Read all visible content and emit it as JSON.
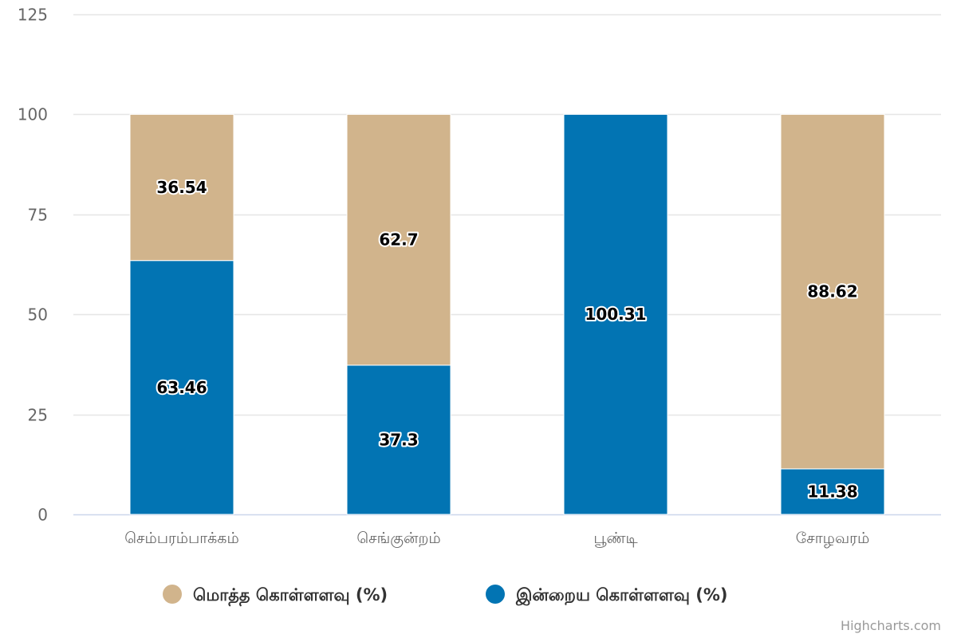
{
  "chart_data": {
    "type": "bar",
    "stacking": "percent",
    "categories": [
      "செம்பரம்பாக்கம்",
      "செங்குன்றம்",
      "பூண்டி",
      "சோழவரம்"
    ],
    "series": [
      {
        "name": "மொத்த கொள்ளளவு (%)",
        "color": "#d1b48c",
        "values": [
          36.54,
          62.7,
          0,
          88.62
        ],
        "labels": [
          "36.54",
          "62.7",
          "",
          "88.62"
        ]
      },
      {
        "name": "இன்றைய கொள்ளளவு (%)",
        "color": "#0274b3",
        "values": [
          63.46,
          37.3,
          100.31,
          11.38
        ],
        "labels": [
          "63.46",
          "37.3",
          "100.31",
          "11.38"
        ]
      }
    ],
    "yticks": [
      "0",
      "25",
      "50",
      "75",
      "100",
      "125"
    ],
    "ylim": [
      0,
      125
    ],
    "grid": true,
    "legend": "bottom-center",
    "xlabel": "",
    "ylabel": ""
  },
  "credits": "Highcharts.com"
}
